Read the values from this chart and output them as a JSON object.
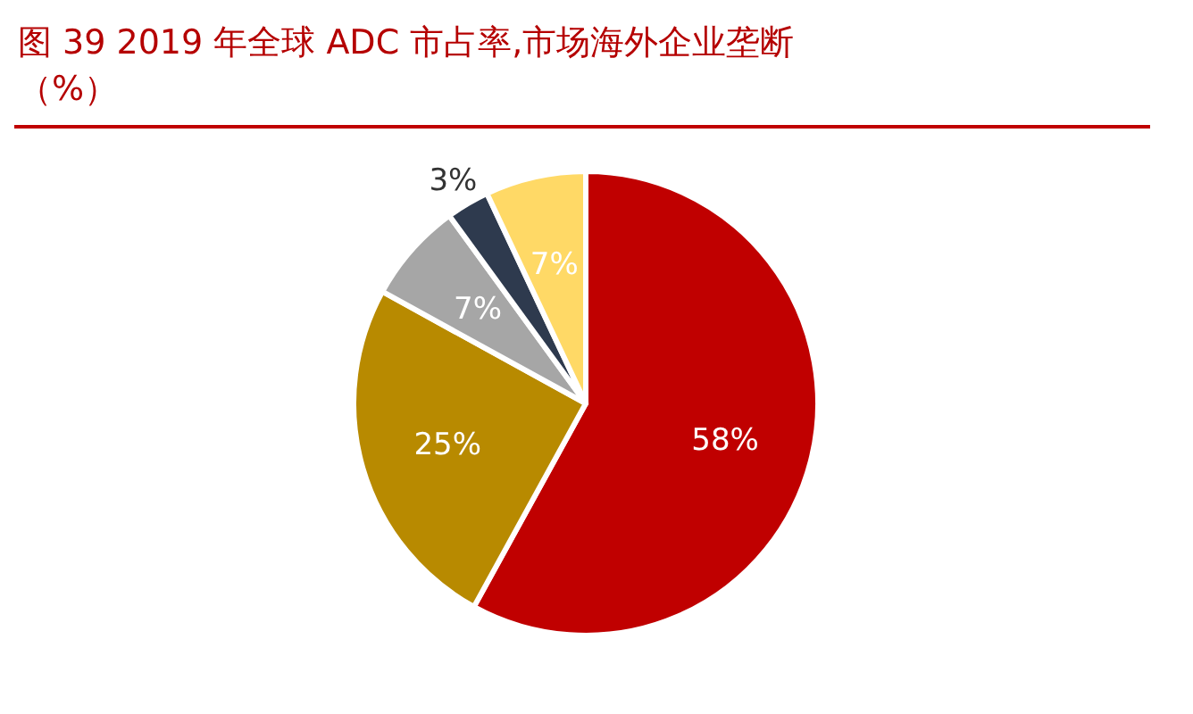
{
  "chart_data": {
    "type": "pie",
    "title": "图 39 2019 年全球 ADC 市占率,市场海外企业垄断（%）",
    "categories": [
      null,
      null,
      null,
      null,
      null
    ],
    "values": [
      58,
      25,
      7,
      3,
      7
    ],
    "value_labels": [
      "58%",
      "25%",
      "7%",
      "3%",
      "7%"
    ],
    "colors": [
      "#c00000",
      "#b88a00",
      "#a6a6a6",
      "#2e3a4e",
      "#ffd966"
    ]
  }
}
